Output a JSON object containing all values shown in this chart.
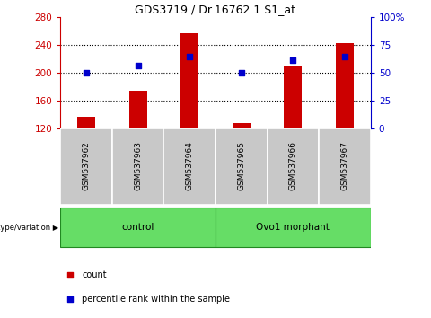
{
  "title": "GDS3719 / Dr.16762.1.S1_at",
  "samples": [
    "GSM537962",
    "GSM537963",
    "GSM537964",
    "GSM537965",
    "GSM537966",
    "GSM537967"
  ],
  "counts": [
    137,
    175,
    258,
    128,
    210,
    243
  ],
  "percentiles": [
    50,
    57,
    65,
    50,
    62,
    65
  ],
  "ylim_left": [
    120,
    280
  ],
  "ylim_right": [
    0,
    100
  ],
  "yticks_left": [
    120,
    160,
    200,
    240,
    280
  ],
  "yticks_right": [
    0,
    25,
    50,
    75,
    100
  ],
  "bar_color": "#CC0000",
  "dot_color": "#0000CC",
  "bar_width": 0.35,
  "left_axis_color": "#CC0000",
  "right_axis_color": "#0000CC",
  "sample_box_color": "#c8c8c8",
  "group_box_color": "#66dd66",
  "group_box_edge": "#228822",
  "ctrl_label": "control",
  "ovo_label": "Ovo1 morphant",
  "genotype_label": "genotype/variation",
  "legend_count": "count",
  "legend_pct": "percentile rank within the sample"
}
